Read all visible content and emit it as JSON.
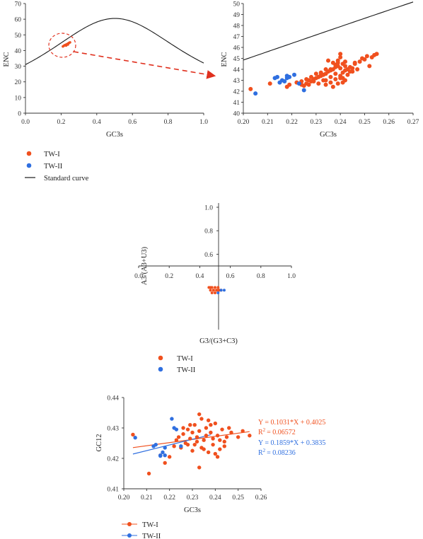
{
  "colors": {
    "tw1": "#f0501e",
    "tw2": "#2f6fe0",
    "standard": "#1a1a1a",
    "highlight": "#e0301e"
  },
  "chart_data": [
    {
      "type": "line",
      "xlabel": "GC3s",
      "ylabel": "ENC",
      "xlim": [
        0.0,
        1.0
      ],
      "ylim": [
        0,
        70
      ],
      "xticks": [
        "0.0",
        "0.2",
        "0.4",
        "0.6",
        "0.8",
        "1.0"
      ],
      "yticks": [
        "0",
        "10",
        "20",
        "30",
        "40",
        "50",
        "60",
        "70"
      ],
      "series": [
        {
          "name": "Standard curve",
          "formula": "ENC = 2 + s + 29/(s^2 + (1-s)^2)"
        }
      ],
      "highlight_region": {
        "x": 0.23,
        "y": 43.5
      }
    },
    {
      "type": "scatter",
      "xlabel": "GC3s",
      "ylabel": "ENC",
      "xlim": [
        0.2,
        0.27
      ],
      "ylim": [
        40,
        50
      ],
      "xticks": [
        "0.20",
        "0.21",
        "0.22",
        "0.23",
        "0.24",
        "0.25",
        "0.26",
        "0.27"
      ],
      "yticks": [
        "40",
        "41",
        "42",
        "43",
        "44",
        "45",
        "46",
        "47",
        "48",
        "49",
        "50"
      ],
      "series": [
        {
          "name": "TW-I",
          "x": [
            0.203,
            0.211,
            0.218,
            0.219,
            0.222,
            0.224,
            0.226,
            0.227,
            0.228,
            0.229,
            0.23,
            0.231,
            0.232,
            0.233,
            0.234,
            0.235,
            0.236,
            0.237,
            0.238,
            0.238,
            0.239,
            0.239,
            0.24,
            0.24,
            0.241,
            0.241,
            0.242,
            0.242,
            0.243,
            0.244,
            0.245,
            0.246,
            0.248,
            0.25,
            0.251,
            0.253,
            0.254,
            0.255,
            0.236,
            0.234,
            0.233,
            0.231,
            0.229,
            0.227,
            0.225,
            0.224,
            0.237,
            0.239,
            0.241,
            0.243,
            0.245,
            0.242,
            0.24,
            0.238,
            0.236,
            0.234,
            0.232,
            0.23,
            0.228,
            0.226,
            0.235,
            0.237,
            0.239,
            0.24,
            0.241,
            0.238,
            0.236,
            0.24,
            0.242,
            0.244,
            0.246,
            0.247,
            0.249,
            0.252,
            0.234,
            0.232
          ],
          "y": [
            42.2,
            42.7,
            42.4,
            42.6,
            42.8,
            42.6,
            42.7,
            43.0,
            42.9,
            43.1,
            43.2,
            43.3,
            43.4,
            43.5,
            43.6,
            43.8,
            43.9,
            44.0,
            44.2,
            44.4,
            44.6,
            44.8,
            44.1,
            45.1,
            44.5,
            43.7,
            44.3,
            43.9,
            44.0,
            44.2,
            44.1,
            44.5,
            44.7,
            44.9,
            45.2,
            45.1,
            45.3,
            45.4,
            42.8,
            42.6,
            43.0,
            42.7,
            42.9,
            42.6,
            42.5,
            42.9,
            42.4,
            42.7,
            43.2,
            43.5,
            43.8,
            43.0,
            43.4,
            43.1,
            43.3,
            43.0,
            43.5,
            43.6,
            43.3,
            43.1,
            44.8,
            44.6,
            44.3,
            45.4,
            42.8,
            43.6,
            44.0,
            43.2,
            44.7,
            43.8,
            44.6,
            44.0,
            45.0,
            44.3,
            44.0,
            43.7
          ]
        },
        {
          "name": "TW-II",
          "x": [
            0.205,
            0.213,
            0.214,
            0.215,
            0.216,
            0.217,
            0.218,
            0.218,
            0.219,
            0.221,
            0.223,
            0.225
          ],
          "y": [
            41.8,
            43.2,
            43.3,
            42.8,
            43.0,
            42.9,
            43.2,
            43.4,
            43.3,
            43.5,
            42.7,
            42.1
          ]
        }
      ],
      "reference_line": {
        "name": "Standard curve"
      }
    },
    {
      "type": "scatter",
      "xlabel": "G3/(G3+C3)",
      "ylabel": "A3/(A3+U3)",
      "xlim": [
        0.0,
        1.0
      ],
      "ylim": [
        0.0,
        1.0
      ],
      "xticks": [
        "0.0",
        "0.2",
        "0.4",
        "0.6",
        "0.8",
        "1.0"
      ],
      "yticks": [
        "0.6",
        "0.8",
        "1.0"
      ],
      "series": [
        {
          "name": "TW-I",
          "x": [
            0.46,
            0.47,
            0.48,
            0.49,
            0.5,
            0.51,
            0.52,
            0.53,
            0.48,
            0.5,
            0.52,
            0.47,
            0.49,
            0.51,
            0.54
          ],
          "y": [
            0.42,
            0.41,
            0.42,
            0.41,
            0.42,
            0.41,
            0.42,
            0.41,
            0.4,
            0.4,
            0.41,
            0.42,
            0.41,
            0.41,
            0.41
          ]
        },
        {
          "name": "TW-II",
          "x": [
            0.54,
            0.56,
            0.52
          ],
          "y": [
            0.41,
            0.41,
            0.4
          ]
        }
      ]
    },
    {
      "type": "scatter",
      "xlabel": "GC3s",
      "ylabel": "GC12",
      "xlim": [
        0.2,
        0.26
      ],
      "ylim": [
        0.41,
        0.44
      ],
      "xticks": [
        "0.20",
        "0.21",
        "0.22",
        "0.23",
        "0.24",
        "0.25",
        "0.26"
      ],
      "yticks": [
        "0.41",
        "0.42",
        "0.43",
        "0.44"
      ],
      "series": [
        {
          "name": "TW-I",
          "x": [
            0.204,
            0.211,
            0.216,
            0.218,
            0.22,
            0.222,
            0.223,
            0.225,
            0.226,
            0.227,
            0.228,
            0.229,
            0.23,
            0.231,
            0.232,
            0.233,
            0.233,
            0.234,
            0.235,
            0.236,
            0.237,
            0.238,
            0.239,
            0.24,
            0.241,
            0.242,
            0.243,
            0.244,
            0.245,
            0.247,
            0.25,
            0.252,
            0.255,
            0.228,
            0.23,
            0.232,
            0.234,
            0.236,
            0.238,
            0.24,
            0.242,
            0.226,
            0.231,
            0.235,
            0.239,
            0.241,
            0.237,
            0.233,
            0.229,
            0.224,
            0.244,
            0.246
          ],
          "y": [
            0.4278,
            0.415,
            0.421,
            0.4185,
            0.4205,
            0.424,
            0.426,
            0.4235,
            0.428,
            0.425,
            0.4295,
            0.4265,
            0.4225,
            0.431,
            0.427,
            0.4345,
            0.417,
            0.433,
            0.426,
            0.43,
            0.422,
            0.4285,
            0.4245,
            0.4315,
            0.4275,
            0.423,
            0.4295,
            0.4255,
            0.427,
            0.4285,
            0.427,
            0.429,
            0.4275,
            0.4245,
            0.4285,
            0.4255,
            0.4235,
            0.4275,
            0.431,
            0.4215,
            0.426,
            0.43,
            0.4245,
            0.423,
            0.4265,
            0.4205,
            0.4325,
            0.429,
            0.431,
            0.427,
            0.424,
            0.43
          ]
        },
        {
          "name": "TW-II",
          "x": [
            0.205,
            0.213,
            0.214,
            0.216,
            0.217,
            0.218,
            0.221,
            0.222,
            0.223,
            0.225,
            0.218,
            0.216
          ],
          "y": [
            0.4268,
            0.424,
            0.4245,
            0.421,
            0.422,
            0.4235,
            0.433,
            0.43,
            0.4295,
            0.424,
            0.421,
            0.4208
          ]
        }
      ],
      "fits": [
        {
          "name": "TW-I",
          "equation": "Y = 0.1031*X + 0.4025",
          "r2_prefix": "R",
          "r2_value": "= 0.06572",
          "slope": 0.1031,
          "intercept": 0.4025
        },
        {
          "name": "TW-II",
          "equation": "Y = 0.1859*X + 0.3835",
          "r2_prefix": "R",
          "r2_value": "= 0.08236",
          "slope": 0.1859,
          "intercept": 0.3835
        }
      ]
    }
  ],
  "legend1": [
    {
      "label": "TW-I"
    },
    {
      "label": "TW-II"
    },
    {
      "label": "Standard curve"
    }
  ],
  "legend2": [
    {
      "label": "TW-I"
    },
    {
      "label": "TW-II"
    }
  ],
  "legend3": [
    {
      "label": "TW-I"
    },
    {
      "label": "TW-II"
    }
  ]
}
